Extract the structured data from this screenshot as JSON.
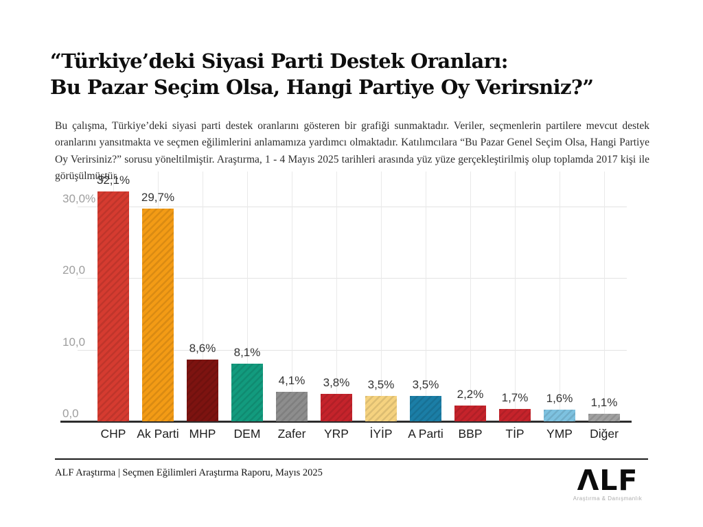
{
  "title": {
    "line1": "“Türkiye’deki Siyasi Parti Destek Oranları:",
    "line2": "Bu Pazar Seçim Olsa, Hangi Partiye Oy Verirsniz?”"
  },
  "description": "Bu çalışma, Türkiye’deki siyasi parti destek oranlarını gösteren bir grafiği sunmaktadır. Veriler, seçmenlerin partilere mevcut destek oranlarını yansıtmakta ve seçmen eğilimlerini anlamamıza yardımcı olmaktadır. Katılımcılara “Bu Pazar Genel Seçim Olsa, Hangi Partiye Oy Verirsiniz?” sorusu yöneltilmiştir. Araştırma, 1 - 4 Mayıs 2025 tarihleri arasında yüz yüze gerçekleştirilmiş olup toplamda 2017 kişi ile görüşülmüştür.",
  "chart_data": {
    "type": "bar",
    "title": "",
    "xlabel": "",
    "ylabel": "",
    "categories": [
      "CHP",
      "Ak Parti",
      "MHP",
      "DEM",
      "Zafer",
      "YRP",
      "İYİP",
      "A Parti",
      "BBP",
      "TİP",
      "YMP",
      "Diğer"
    ],
    "values": [
      32.1,
      29.7,
      8.6,
      8.1,
      4.1,
      3.8,
      3.5,
      3.5,
      2.2,
      1.7,
      1.6,
      1.1
    ],
    "value_labels": [
      "32,1%",
      "29,7%",
      "8,6%",
      "8,1%",
      "4,1%",
      "3,8%",
      "3,5%",
      "3,5%",
      "2,2%",
      "1,7%",
      "1,6%",
      "1,1%"
    ],
    "bar_colors": [
      "#d53b30",
      "#f39b15",
      "#7d1310",
      "#129b7e",
      "#8d8d8d",
      "#c5232b",
      "#f5d27f",
      "#1b7ea6",
      "#c5232b",
      "#c5232b",
      "#7ec2e0",
      "#a0a0a0"
    ],
    "y_axis": {
      "ticks": [
        {
          "label": "30,0%",
          "value": 30
        },
        {
          "label": "20,0",
          "value": 20
        },
        {
          "label": "10,0",
          "value": 10
        },
        {
          "label": "0,0",
          "value": 0
        }
      ],
      "range": [
        0,
        35
      ]
    },
    "grid": true,
    "legend_position": "none"
  },
  "footer": {
    "source_line": "ALF Araştırma | Seçmen Eğilimleri Araştırma Raporu, Mayıs 2025",
    "logo_text": "ΛLF",
    "logo_subtext": "Araştırma & Danışmanlık"
  }
}
